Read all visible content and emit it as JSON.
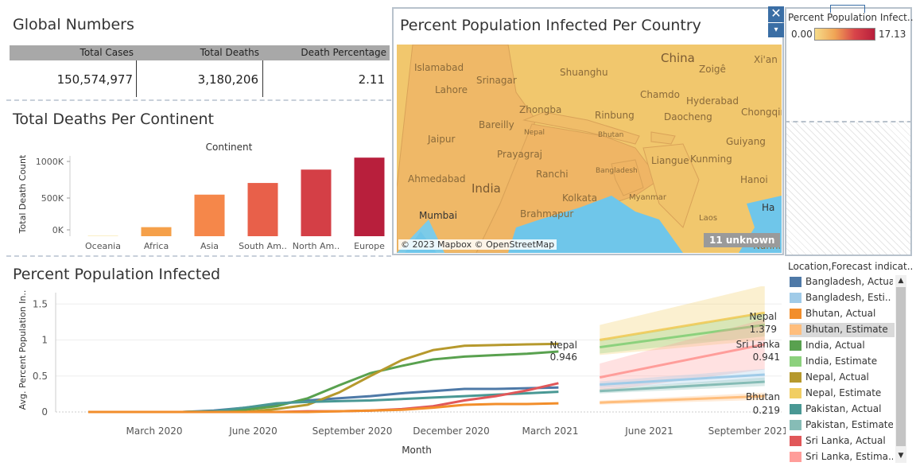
{
  "global": {
    "title": "Global Numbers",
    "headers": [
      "Total Cases",
      "Total Deaths",
      "Death Percentage"
    ],
    "values": [
      "150,574,977",
      "3,180,206",
      "2.11"
    ]
  },
  "continent": {
    "title": "Total Deaths Per Continent",
    "header_label": "Continent",
    "ylabel": "Total Death Count",
    "ticks": [
      "1000K",
      "500K",
      "0K"
    ],
    "chart_data": {
      "type": "bar",
      "categories": [
        "Oceania",
        "Africa",
        "Asia",
        "South Am..",
        "North Am..",
        "Europe"
      ],
      "values": [
        1000,
        121000,
        556000,
        712000,
        891000,
        1051000
      ],
      "colors": [
        "#f6e08c",
        "#f5a04a",
        "#f5874a",
        "#e8604a",
        "#d43f46",
        "#b81f3c"
      ],
      "ylim": [
        0,
        1100000
      ]
    }
  },
  "map": {
    "title": "Percent Population Infected Per Country",
    "attribution": "© 2023 Mapbox © OpenStreetMap",
    "unknown_badge": "11 unknown",
    "close_icon": "✕",
    "menu_icon": "▾",
    "labels": [
      {
        "t": "Islamabad"
      },
      {
        "t": "Srinagar"
      },
      {
        "t": "Shuanghu"
      },
      {
        "t": "China"
      },
      {
        "t": "Xi'an"
      },
      {
        "t": "Zoigê"
      },
      {
        "t": "Lahore"
      },
      {
        "t": "Chamdo"
      },
      {
        "t": "Zhongba"
      },
      {
        "t": "Rinbung"
      },
      {
        "t": "Daocheng"
      },
      {
        "t": "Chongqing"
      },
      {
        "t": "Hyderabad"
      },
      {
        "t": "Bareilly"
      },
      {
        "t": "Nepal"
      },
      {
        "t": "Guiyang"
      },
      {
        "t": "Jaipur"
      },
      {
        "t": "Bhutan"
      },
      {
        "t": "Liangue"
      },
      {
        "t": "Kunming"
      },
      {
        "t": "Prayagraj"
      },
      {
        "t": "Ranchi"
      },
      {
        "t": "Bangladesh"
      },
      {
        "t": "Ahmedabad"
      },
      {
        "t": "India"
      },
      {
        "t": "Kolkata"
      },
      {
        "t": "Myanmar"
      },
      {
        "t": "Hanoi"
      },
      {
        "t": "Laos"
      },
      {
        "t": "Nanning"
      },
      {
        "t": "Mumbai"
      },
      {
        "t": "Brahmapur"
      },
      {
        "t": "Ha"
      }
    ]
  },
  "map_legend": {
    "title": "Percent Population Infect..",
    "min": "0.00",
    "max": "17.13"
  },
  "infected": {
    "title": "Percent Population Infected",
    "ylabel": "Avg. Percent Population In..",
    "xlabel": "Month",
    "yticks": [
      "1.5",
      "1",
      "0.5",
      "0"
    ],
    "xticks": [
      "March 2020",
      "June 2020",
      "September 2020",
      "December 2020",
      "March 2021",
      "June 2021",
      "September 2021"
    ],
    "annotations": [
      {
        "name": "Nepal",
        "value": "0.946"
      },
      {
        "name": "Nepal",
        "value": "1.379"
      },
      {
        "name": "Sri Lanka",
        "value": "0.941"
      },
      {
        "name": "Bhutan",
        "value": "0.219"
      }
    ],
    "chart_data": {
      "type": "line",
      "x": [
        "2020-01",
        "2020-02",
        "2020-03",
        "2020-04",
        "2020-05",
        "2020-06",
        "2020-07",
        "2020-08",
        "2020-09",
        "2020-10",
        "2020-11",
        "2020-12",
        "2021-01",
        "2021-02",
        "2021-03",
        "2021-04"
      ],
      "series": [
        {
          "name": "Bangladesh, Actual",
          "color": "#4e79a7",
          "values": [
            0,
            0,
            0,
            0,
            0.02,
            0.06,
            0.11,
            0.16,
            0.19,
            0.22,
            0.26,
            0.29,
            0.32,
            0.32,
            0.33,
            0.34
          ]
        },
        {
          "name": "India, Actual",
          "color": "#59a14f",
          "values": [
            0,
            0,
            0,
            0,
            0.01,
            0.03,
            0.08,
            0.19,
            0.37,
            0.54,
            0.64,
            0.73,
            0.77,
            0.79,
            0.81,
            0.84
          ]
        },
        {
          "name": "Nepal, Actual",
          "color": "#b6992d",
          "values": [
            0,
            0,
            0,
            0,
            0,
            0,
            0.04,
            0.1,
            0.27,
            0.5,
            0.72,
            0.86,
            0.92,
            0.93,
            0.94,
            0.946
          ]
        },
        {
          "name": "Pakistan, Actual",
          "color": "#499894",
          "values": [
            0,
            0,
            0,
            0,
            0.01,
            0.06,
            0.12,
            0.14,
            0.15,
            0.16,
            0.18,
            0.2,
            0.22,
            0.24,
            0.26,
            0.28
          ]
        },
        {
          "name": "Sri Lanka, Actual",
          "color": "#e15759",
          "values": [
            0,
            0,
            0,
            0,
            0,
            0,
            0,
            0.01,
            0.01,
            0.02,
            0.04,
            0.08,
            0.16,
            0.22,
            0.3,
            0.4
          ]
        },
        {
          "name": "Bhutan, Actual",
          "color": "#f28e2b",
          "values": [
            0,
            0,
            0,
            0,
            0,
            0,
            0,
            0,
            0.01,
            0.02,
            0.03,
            0.06,
            0.1,
            0.11,
            0.11,
            0.12
          ]
        }
      ],
      "forecast": [
        {
          "name": "Nepal, Estimate",
          "color": "#f1ce63",
          "start": 1.0,
          "end": 1.379,
          "band": 0.38
        },
        {
          "name": "India, Estimate",
          "color": "#8cd17d",
          "start": 0.9,
          "end": 1.21,
          "band": 0.16
        },
        {
          "name": "Sri Lanka, Estimate",
          "color": "#ff9d9a",
          "start": 0.48,
          "end": 0.941,
          "band": 0.35
        },
        {
          "name": "Bangladesh, Estimate",
          "color": "#a0cbe8",
          "start": 0.38,
          "end": 0.52,
          "band": 0.08
        },
        {
          "name": "Pakistan, Estimate",
          "color": "#86bcb6",
          "start": 0.29,
          "end": 0.42,
          "band": 0.06
        },
        {
          "name": "Bhutan, Estimate",
          "color": "#ffbe7d",
          "start": 0.13,
          "end": 0.219,
          "band": 0.05
        }
      ],
      "ylim": [
        0,
        1.75
      ]
    }
  },
  "location_legend": {
    "title": "Location,Forecast indicat..",
    "items": [
      {
        "label": "Bangladesh, Actual",
        "color": "#4e79a7"
      },
      {
        "label": "Bangladesh, Esti..",
        "color": "#a0cbe8"
      },
      {
        "label": "Bhutan, Actual",
        "color": "#f28e2b"
      },
      {
        "label": "Bhutan, Estimate",
        "color": "#ffbe7d"
      },
      {
        "label": "India, Actual",
        "color": "#59a14f"
      },
      {
        "label": "India, Estimate",
        "color": "#8cd17d"
      },
      {
        "label": "Nepal, Actual",
        "color": "#b6992d"
      },
      {
        "label": "Nepal, Estimate",
        "color": "#f1ce63"
      },
      {
        "label": "Pakistan, Actual",
        "color": "#499894"
      },
      {
        "label": "Pakistan, Estimate",
        "color": "#86bcb6"
      },
      {
        "label": "Sri Lanka, Actual",
        "color": "#e15759"
      },
      {
        "label": "Sri Lanka, Estima..",
        "color": "#ff9d9a"
      }
    ],
    "scroll_up": "▲",
    "scroll_down": "▼"
  }
}
